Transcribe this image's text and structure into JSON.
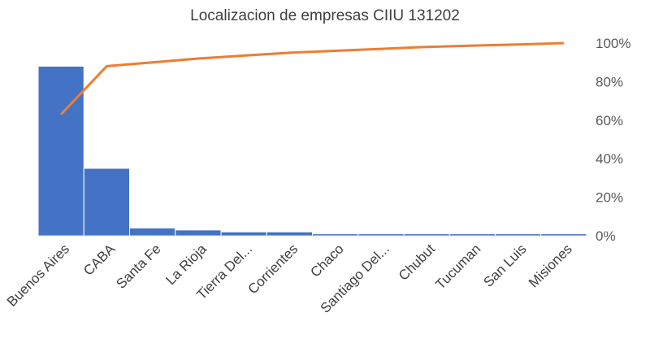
{
  "chart_data": {
    "type": "bar",
    "title": "Localizacion de empresas CIIU 131202",
    "categories": [
      "Buenos Aires",
      "CABA",
      "Santa Fe",
      "La Rioja",
      "Tierra Del...",
      "Corrientes",
      "Chaco",
      "Santiago Del...",
      "Chubut",
      "Tucuman",
      "San Luis",
      "Misiones"
    ],
    "series": [
      {
        "type": "bar",
        "color": "#4472C4",
        "values": [
          88,
          35,
          4,
          3,
          2,
          2,
          1,
          1,
          1,
          1,
          1,
          1
        ]
      },
      {
        "type": "line",
        "axis": "right",
        "color": "#ED7D31",
        "values": [
          63,
          88,
          90,
          92,
          93.5,
          95,
          96,
          97,
          98,
          98.7,
          99.3,
          100
        ]
      }
    ],
    "left_ylim": [
      0,
      100
    ],
    "right_axis": {
      "ylim": [
        0,
        100
      ],
      "ticks": [
        "0%",
        "20%",
        "40%",
        "60%",
        "80%",
        "100%"
      ]
    },
    "grid": false,
    "legend": "none"
  }
}
